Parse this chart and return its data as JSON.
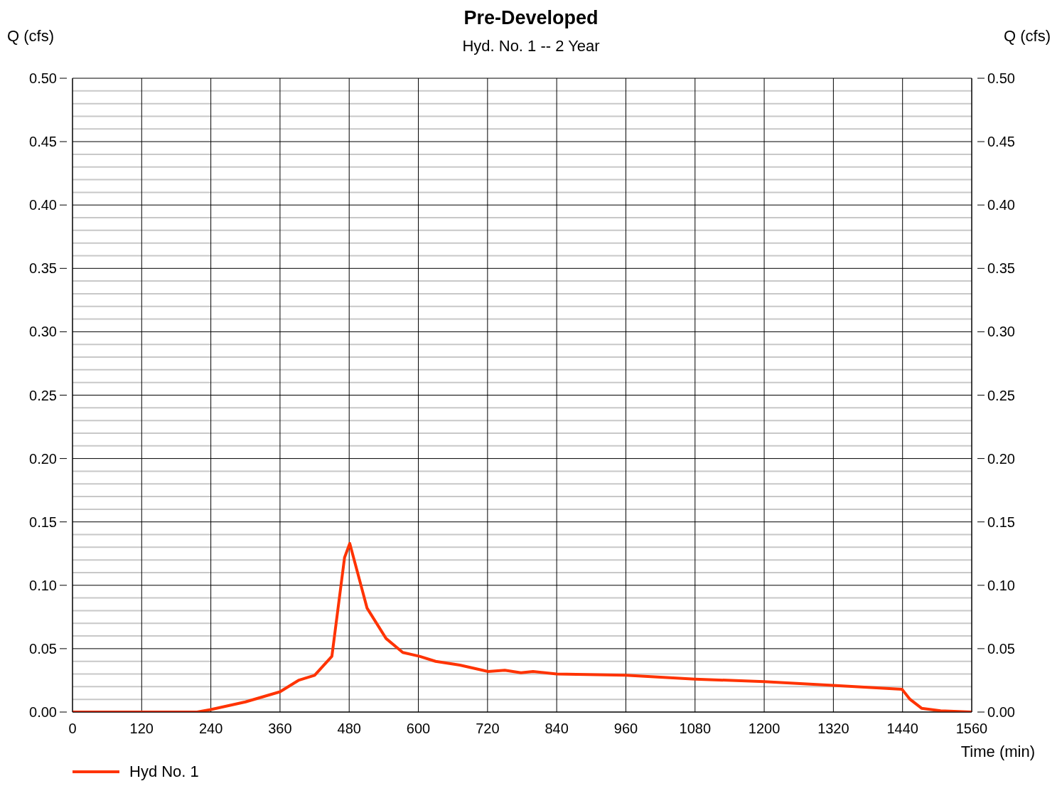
{
  "chart_data": {
    "type": "line",
    "title": "Pre-Developed",
    "subtitle": "Hyd. No. 1 -- 2 Year",
    "xlabel": "Time (min)",
    "ylabel": "Q (cfs)",
    "y2label": "Q (cfs)",
    "series": [
      {
        "name": "Hyd No. 1",
        "color": "#ff3300",
        "x": [
          0,
          216,
          240,
          300,
          360,
          392,
          420,
          450,
          472,
          481,
          511,
          544,
          573,
          602,
          630,
          672,
          721,
          750,
          778,
          799,
          840,
          960,
          1080,
          1200,
          1319,
          1439,
          1453,
          1473,
          1506,
          1560
        ],
        "values": [
          0,
          0,
          0.002,
          0.008,
          0.016,
          0.025,
          0.029,
          0.044,
          0.122,
          0.133,
          0.082,
          0.058,
          0.047,
          0.044,
          0.04,
          0.037,
          0.032,
          0.033,
          0.031,
          0.032,
          0.03,
          0.029,
          0.026,
          0.024,
          0.021,
          0.018,
          0.01,
          0.003,
          0.001,
          0
        ]
      }
    ],
    "xlim": [
      0,
      1560
    ],
    "xticks": [
      0,
      120,
      240,
      360,
      480,
      600,
      720,
      840,
      960,
      1080,
      1200,
      1320,
      1440,
      1560
    ],
    "ylim": [
      0,
      0.5
    ],
    "yticks": [
      {
        "value": 0,
        "label": "0.00"
      },
      {
        "value": 0.01,
        "label": null
      },
      {
        "value": 0.02,
        "label": null
      },
      {
        "value": 0.03,
        "label": null
      },
      {
        "value": 0.04,
        "label": null
      },
      {
        "value": 0.05,
        "label": "0.05"
      },
      {
        "value": 0.06,
        "label": null
      },
      {
        "value": 0.07,
        "label": null
      },
      {
        "value": 0.08,
        "label": null
      },
      {
        "value": 0.09,
        "label": null
      },
      {
        "value": 0.1,
        "label": "0.10"
      },
      {
        "value": 0.11,
        "label": null
      },
      {
        "value": 0.12,
        "label": null
      },
      {
        "value": 0.13,
        "label": null
      },
      {
        "value": 0.14,
        "label": null
      },
      {
        "value": 0.15,
        "label": "0.15"
      },
      {
        "value": 0.16,
        "label": null
      },
      {
        "value": 0.17,
        "label": null
      },
      {
        "value": 0.18,
        "label": null
      },
      {
        "value": 0.19,
        "label": null
      },
      {
        "value": 0.2,
        "label": "0.20"
      },
      {
        "value": 0.21,
        "label": null
      },
      {
        "value": 0.22,
        "label": null
      },
      {
        "value": 0.23,
        "label": null
      },
      {
        "value": 0.24,
        "label": null
      },
      {
        "value": 0.25,
        "label": "0.25"
      },
      {
        "value": 0.26,
        "label": null
      },
      {
        "value": 0.27,
        "label": null
      },
      {
        "value": 0.28,
        "label": null
      },
      {
        "value": 0.29,
        "label": null
      },
      {
        "value": 0.3,
        "label": "0.30"
      },
      {
        "value": 0.31,
        "label": null
      },
      {
        "value": 0.32,
        "label": null
      },
      {
        "value": 0.33,
        "label": null
      },
      {
        "value": 0.34,
        "label": null
      },
      {
        "value": 0.35,
        "label": "0.35"
      },
      {
        "value": 0.36,
        "label": null
      },
      {
        "value": 0.37,
        "label": null
      },
      {
        "value": 0.38,
        "label": null
      },
      {
        "value": 0.39,
        "label": null
      },
      {
        "value": 0.4,
        "label": "0.40"
      },
      {
        "value": 0.41,
        "label": null
      },
      {
        "value": 0.42,
        "label": null
      },
      {
        "value": 0.43,
        "label": null
      },
      {
        "value": 0.44,
        "label": null
      },
      {
        "value": 0.45,
        "label": "0.45"
      },
      {
        "value": 0.46,
        "label": null
      },
      {
        "value": 0.47,
        "label": null
      },
      {
        "value": 0.48,
        "label": null
      },
      {
        "value": 0.49,
        "label": null
      },
      {
        "value": 0.5,
        "label": "0.50"
      }
    ],
    "y2lim": [
      0,
      0.5
    ],
    "y2ticks": [
      {
        "value": 0,
        "label": "0.00"
      },
      {
        "value": 0.05,
        "label": "0.05"
      },
      {
        "value": 0.1,
        "label": "0.10"
      },
      {
        "value": 0.15,
        "label": "0.15"
      },
      {
        "value": 0.2,
        "label": "0.20"
      },
      {
        "value": 0.25,
        "label": "0.25"
      },
      {
        "value": 0.3,
        "label": "0.30"
      },
      {
        "value": 0.35,
        "label": "0.35"
      },
      {
        "value": 0.4,
        "label": "0.40"
      },
      {
        "value": 0.45,
        "label": "0.45"
      },
      {
        "value": 0.5,
        "label": "0.50"
      }
    ],
    "grid": true,
    "legend": "bottom left",
    "line_style": "solid"
  }
}
